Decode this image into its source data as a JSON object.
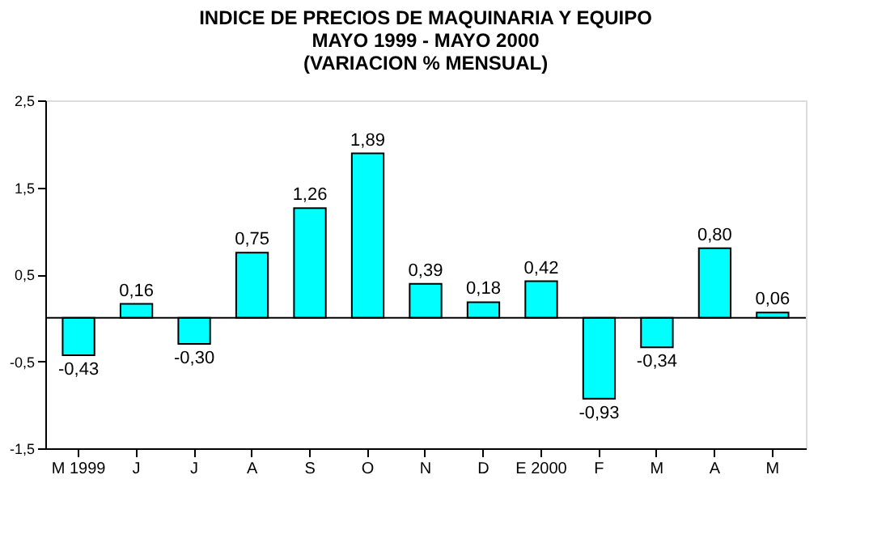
{
  "chart_data": {
    "type": "bar",
    "title": [
      "INDICE DE PRECIOS DE MAQUINARIA Y EQUIPO",
      "MAYO 1999 - MAYO 2000",
      "(VARIACION % MENSUAL)"
    ],
    "categories": [
      "M 1999",
      "J",
      "J",
      "A",
      "S",
      "O",
      "N",
      "D",
      "E 2000",
      "F",
      "M",
      "A",
      "M"
    ],
    "values": [
      -0.43,
      0.16,
      -0.3,
      0.75,
      1.26,
      1.89,
      0.39,
      0.18,
      0.42,
      -0.93,
      -0.34,
      0.8,
      0.06
    ],
    "value_labels": [
      "-0,43",
      "0,16",
      "-0,30",
      "0,75",
      "1,26",
      "1,89",
      "0,39",
      "0,18",
      "0,42",
      "-0,93",
      "-0,34",
      "0,80",
      "0,06"
    ],
    "color": "#00ffff",
    "ylim": [
      -1.5,
      2.5
    ],
    "yticks": [
      {
        "value": -1.5,
        "label": "-1,5"
      },
      {
        "value": -0.5,
        "label": "-0,5"
      },
      {
        "value": 0.5,
        "label": "0,5"
      },
      {
        "value": 1.5,
        "label": "1,5"
      },
      {
        "value": 2.5,
        "label": "2,5"
      }
    ],
    "ref_lines": [
      {
        "axis": "y",
        "value": 0,
        "label": null,
        "color": "#000000"
      }
    ],
    "grid": false
  }
}
